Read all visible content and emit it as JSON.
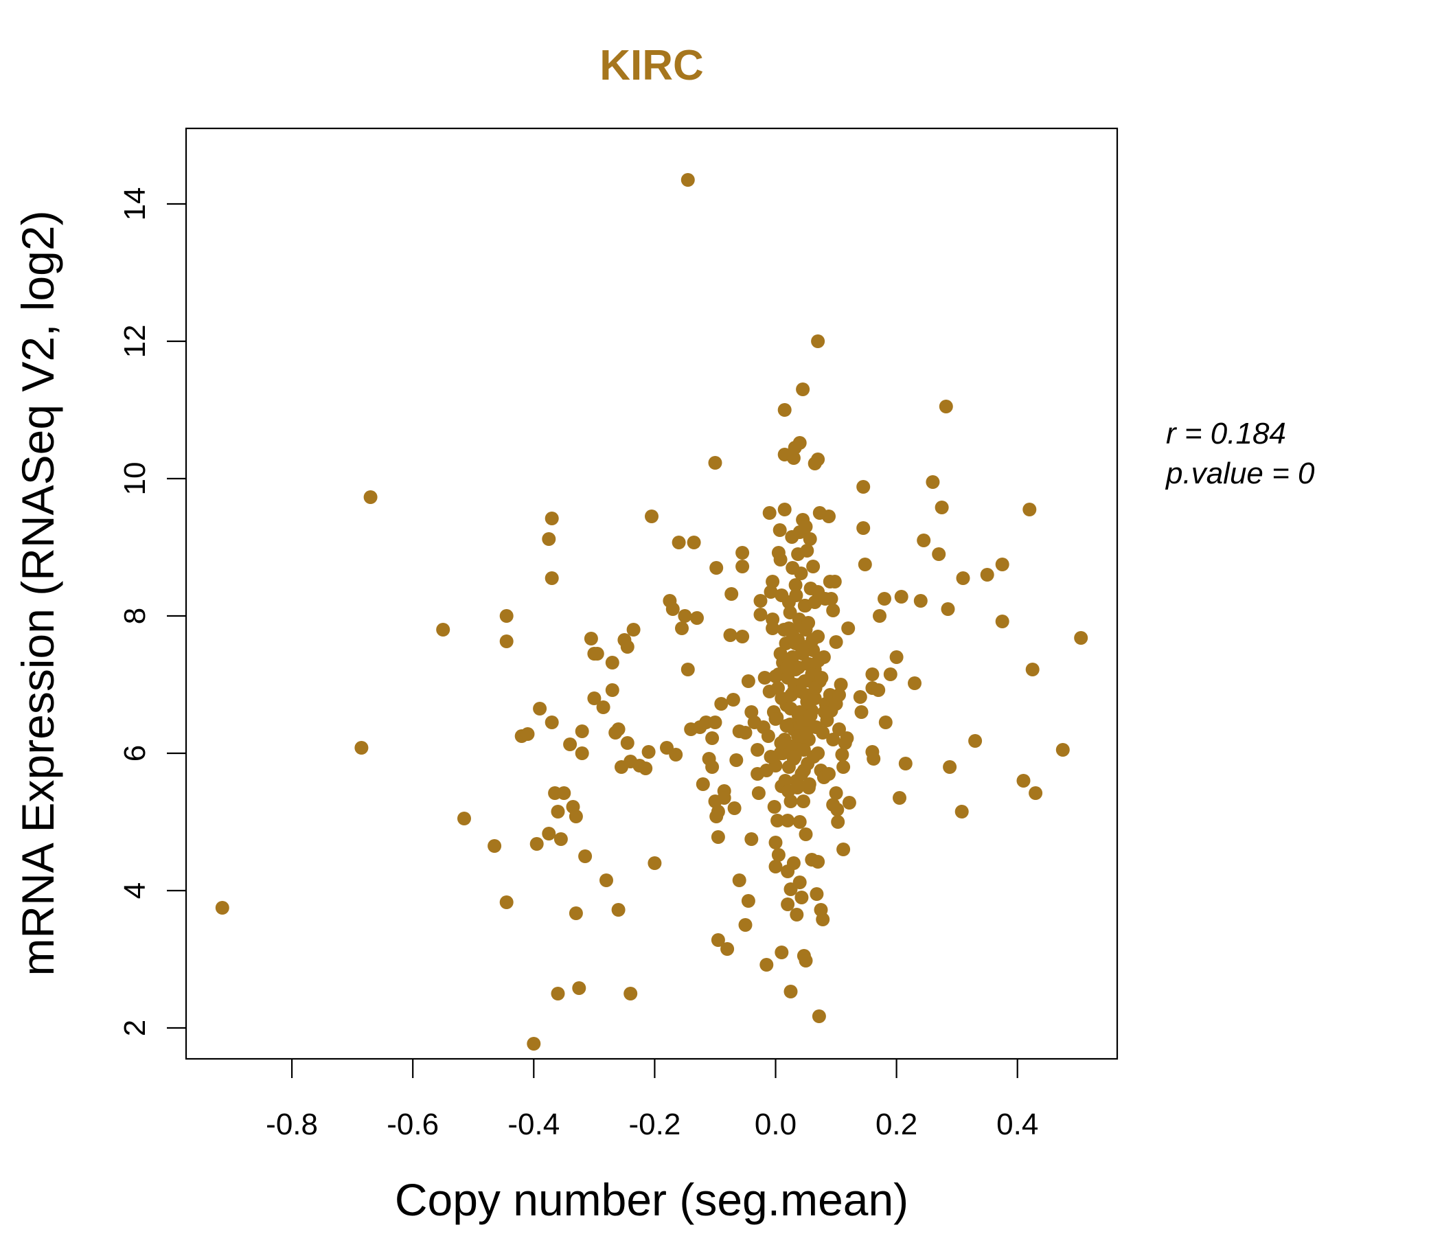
{
  "chart_data": {
    "type": "scatter",
    "title": "KIRC",
    "xlabel": "Copy number (seg.mean)",
    "ylabel": "mRNA Expression (RNASeq V2, log2)",
    "xlim": [
      -0.975,
      0.565
    ],
    "ylim": [
      1.55,
      15.1
    ],
    "x_ticks": [
      -0.8,
      -0.6,
      -0.4,
      -0.2,
      0.0,
      0.2,
      0.4
    ],
    "x_tick_labels": [
      "-0.8",
      "-0.6",
      "-0.4",
      "-0.2",
      "0.0",
      "0.2",
      "0.4"
    ],
    "y_ticks": [
      2,
      4,
      6,
      8,
      10,
      12,
      14
    ],
    "y_tick_labels": [
      "2",
      "4",
      "6",
      "8",
      "10",
      "12",
      "14"
    ],
    "grid": false,
    "point_color": "#A6761D",
    "title_color": "#A6761D",
    "stats": {
      "r_label": "r = 0.184",
      "p_label": "p.value = 0"
    },
    "points": [
      [
        -0.915,
        3.75
      ],
      [
        -0.685,
        6.08
      ],
      [
        -0.67,
        9.73
      ],
      [
        -0.55,
        7.8
      ],
      [
        -0.515,
        5.05
      ],
      [
        -0.465,
        4.65
      ],
      [
        -0.445,
        8.0
      ],
      [
        -0.445,
        7.63
      ],
      [
        -0.445,
        3.83
      ],
      [
        -0.42,
        6.25
      ],
      [
        -0.41,
        6.28
      ],
      [
        -0.4,
        1.77
      ],
      [
        -0.395,
        4.68
      ],
      [
        -0.39,
        6.65
      ],
      [
        -0.375,
        9.12
      ],
      [
        -0.37,
        8.55
      ],
      [
        -0.37,
        9.42
      ],
      [
        -0.37,
        6.45
      ],
      [
        -0.375,
        4.83
      ],
      [
        -0.365,
        5.42
      ],
      [
        -0.36,
        5.15
      ],
      [
        -0.36,
        2.5
      ],
      [
        -0.355,
        4.75
      ],
      [
        -0.35,
        5.42
      ],
      [
        -0.34,
        6.13
      ],
      [
        -0.335,
        5.22
      ],
      [
        -0.33,
        5.08
      ],
      [
        -0.33,
        3.67
      ],
      [
        -0.325,
        2.58
      ],
      [
        -0.32,
        6.32
      ],
      [
        -0.32,
        6.0
      ],
      [
        -0.315,
        4.5
      ],
      [
        -0.305,
        7.67
      ],
      [
        -0.3,
        7.45
      ],
      [
        -0.3,
        6.8
      ],
      [
        -0.295,
        7.45
      ],
      [
        -0.285,
        6.67
      ],
      [
        -0.28,
        4.15
      ],
      [
        -0.27,
        7.32
      ],
      [
        -0.27,
        6.92
      ],
      [
        -0.265,
        6.3
      ],
      [
        -0.26,
        6.35
      ],
      [
        -0.255,
        5.8
      ],
      [
        -0.25,
        7.65
      ],
      [
        -0.245,
        7.55
      ],
      [
        -0.245,
        6.15
      ],
      [
        -0.24,
        5.88
      ],
      [
        -0.24,
        2.5
      ],
      [
        -0.26,
        3.72
      ],
      [
        -0.235,
        7.8
      ],
      [
        -0.225,
        5.82
      ],
      [
        -0.215,
        5.78
      ],
      [
        -0.21,
        6.02
      ],
      [
        -0.205,
        9.45
      ],
      [
        -0.2,
        4.4
      ],
      [
        -0.18,
        6.08
      ],
      [
        -0.175,
        8.22
      ],
      [
        -0.17,
        8.1
      ],
      [
        -0.165,
        5.98
      ],
      [
        -0.16,
        9.07
      ],
      [
        -0.155,
        7.82
      ],
      [
        -0.15,
        8.0
      ],
      [
        -0.145,
        7.22
      ],
      [
        -0.14,
        6.35
      ],
      [
        -0.135,
        9.07
      ],
      [
        -0.13,
        7.97
      ],
      [
        -0.125,
        6.38
      ],
      [
        -0.12,
        5.55
      ],
      [
        -0.115,
        6.45
      ],
      [
        -0.11,
        5.92
      ],
      [
        -0.105,
        5.8
      ],
      [
        -0.105,
        6.22
      ],
      [
        -0.1,
        6.45
      ],
      [
        -0.1,
        5.3
      ],
      [
        -0.098,
        5.08
      ],
      [
        -0.095,
        5.15
      ],
      [
        -0.095,
        4.78
      ],
      [
        -0.095,
        3.28
      ],
      [
        -0.1,
        10.23
      ],
      [
        -0.098,
        8.7
      ],
      [
        -0.09,
        6.72
      ],
      [
        -0.085,
        5.45
      ],
      [
        -0.085,
        5.35
      ],
      [
        -0.08,
        3.15
      ],
      [
        -0.075,
        7.72
      ],
      [
        -0.073,
        8.32
      ],
      [
        -0.07,
        6.78
      ],
      [
        -0.068,
        5.2
      ],
      [
        -0.065,
        5.9
      ],
      [
        -0.06,
        6.32
      ],
      [
        -0.06,
        4.15
      ],
      [
        -0.055,
        8.92
      ],
      [
        -0.055,
        8.72
      ],
      [
        -0.055,
        7.7
      ],
      [
        -0.05,
        6.3
      ],
      [
        -0.05,
        3.5
      ],
      [
        -0.045,
        3.85
      ],
      [
        -0.045,
        7.05
      ],
      [
        -0.04,
        4.75
      ],
      [
        -0.04,
        6.6
      ],
      [
        -0.035,
        6.45
      ],
      [
        -0.03,
        6.05
      ],
      [
        -0.03,
        5.7
      ],
      [
        -0.028,
        5.42
      ],
      [
        -0.025,
        8.22
      ],
      [
        -0.025,
        8.02
      ],
      [
        -0.02,
        6.38
      ],
      [
        -0.015,
        5.75
      ],
      [
        -0.015,
        2.92
      ],
      [
        -0.01,
        9.5
      ],
      [
        -0.008,
        8.35
      ],
      [
        -0.005,
        8.5
      ],
      [
        -0.005,
        7.82
      ],
      [
        -0.003,
        6.6
      ],
      [
        -0.002,
        5.22
      ],
      [
        0.0,
        4.7
      ],
      [
        0.0,
        4.35
      ],
      [
        -0.005,
        7.95
      ],
      [
        0.0,
        5.82
      ],
      [
        0.002,
        6.52
      ],
      [
        0.005,
        7.15
      ],
      [
        0.005,
        8.92
      ],
      [
        0.0,
        7.12
      ],
      [
        0.003,
        5.02
      ],
      [
        0.005,
        4.52
      ],
      [
        0.007,
        9.25
      ],
      [
        0.008,
        8.82
      ],
      [
        0.008,
        6.0
      ],
      [
        0.01,
        8.3
      ],
      [
        0.01,
        5.52
      ],
      [
        0.01,
        3.1
      ],
      [
        0.012,
        7.32
      ],
      [
        0.015,
        10.35
      ],
      [
        0.015,
        11.0
      ],
      [
        0.015,
        9.55
      ],
      [
        0.017,
        7.6
      ],
      [
        0.018,
        6.7
      ],
      [
        0.02,
        5.02
      ],
      [
        0.02,
        4.28
      ],
      [
        0.02,
        3.8
      ],
      [
        0.022,
        8.2
      ],
      [
        0.022,
        7.82
      ],
      [
        0.024,
        6.42
      ],
      [
        0.025,
        5.3
      ],
      [
        0.025,
        4.02
      ],
      [
        0.025,
        2.53
      ],
      [
        0.027,
        9.15
      ],
      [
        0.028,
        8.7
      ],
      [
        0.03,
        10.3
      ],
      [
        0.03,
        6.9
      ],
      [
        0.03,
        5.92
      ],
      [
        0.03,
        4.4
      ],
      [
        0.032,
        10.45
      ],
      [
        0.033,
        8.45
      ],
      [
        0.033,
        7.22
      ],
      [
        0.035,
        6.12
      ],
      [
        0.035,
        5.6
      ],
      [
        0.035,
        3.65
      ],
      [
        0.037,
        8.9
      ],
      [
        0.037,
        7.65
      ],
      [
        0.038,
        6.55
      ],
      [
        0.04,
        10.52
      ],
      [
        0.04,
        9.22
      ],
      [
        0.04,
        7.0
      ],
      [
        0.04,
        5.0
      ],
      [
        0.04,
        4.12
      ],
      [
        0.042,
        8.62
      ],
      [
        0.042,
        6.3
      ],
      [
        0.043,
        3.9
      ],
      [
        0.045,
        11.3
      ],
      [
        0.045,
        9.4
      ],
      [
        0.045,
        7.45
      ],
      [
        0.047,
        5.75
      ],
      [
        0.047,
        3.05
      ],
      [
        0.048,
        8.15
      ],
      [
        0.05,
        9.3
      ],
      [
        0.05,
        7.8
      ],
      [
        0.05,
        6.85
      ],
      [
        0.05,
        4.82
      ],
      [
        0.05,
        2.98
      ],
      [
        0.052,
        8.95
      ],
      [
        0.053,
        7.3
      ],
      [
        0.055,
        6.2
      ],
      [
        0.055,
        5.5
      ],
      [
        0.057,
        9.12
      ],
      [
        0.058,
        8.4
      ],
      [
        0.058,
        7.05
      ],
      [
        0.06,
        6.62
      ],
      [
        0.06,
        4.45
      ],
      [
        0.062,
        8.72
      ],
      [
        0.062,
        7.5
      ],
      [
        0.063,
        5.95
      ],
      [
        0.065,
        10.22
      ],
      [
        0.065,
        8.2
      ],
      [
        0.065,
        7.22
      ],
      [
        0.067,
        6.38
      ],
      [
        0.068,
        3.95
      ],
      [
        0.07,
        12.0
      ],
      [
        0.07,
        10.28
      ],
      [
        0.07,
        8.35
      ],
      [
        0.07,
        7.7
      ],
      [
        0.07,
        6.0
      ],
      [
        0.07,
        4.42
      ],
      [
        0.072,
        2.17
      ],
      [
        0.073,
        9.5
      ],
      [
        0.073,
        7.05
      ],
      [
        0.075,
        5.75
      ],
      [
        0.075,
        3.72
      ],
      [
        0.078,
        6.3
      ],
      [
        0.078,
        3.58
      ],
      [
        0.08,
        7.4
      ],
      [
        0.08,
        5.65
      ],
      [
        0.082,
        8.25
      ],
      [
        0.083,
        6.72
      ],
      [
        0.085,
        6.48
      ],
      [
        0.088,
        9.45
      ],
      [
        0.088,
        5.7
      ],
      [
        0.09,
        8.5
      ],
      [
        0.09,
        6.85
      ],
      [
        0.092,
        8.25
      ],
      [
        0.092,
        6.62
      ],
      [
        0.095,
        8.08
      ],
      [
        0.095,
        6.2
      ],
      [
        0.095,
        5.25
      ],
      [
        0.098,
        8.5
      ],
      [
        0.1,
        7.62
      ],
      [
        0.1,
        6.72
      ],
      [
        0.1,
        5.42
      ],
      [
        0.102,
        5.18
      ],
      [
        0.103,
        5.0
      ],
      [
        0.105,
        6.85
      ],
      [
        0.105,
        6.35
      ],
      [
        0.108,
        7.0
      ],
      [
        0.11,
        5.98
      ],
      [
        0.112,
        5.8
      ],
      [
        0.112,
        4.6
      ],
      [
        0.115,
        6.15
      ],
      [
        0.118,
        6.22
      ],
      [
        0.12,
        7.82
      ],
      [
        0.122,
        5.28
      ],
      [
        0.14,
        6.82
      ],
      [
        0.142,
        6.6
      ],
      [
        0.145,
        9.88
      ],
      [
        0.145,
        9.28
      ],
      [
        0.148,
        8.75
      ],
      [
        0.16,
        7.15
      ],
      [
        0.16,
        6.95
      ],
      [
        0.16,
        6.02
      ],
      [
        0.162,
        5.92
      ],
      [
        0.17,
        6.92
      ],
      [
        0.172,
        8.0
      ],
      [
        0.18,
        8.25
      ],
      [
        0.182,
        6.45
      ],
      [
        0.19,
        7.15
      ],
      [
        0.2,
        7.4
      ],
      [
        0.205,
        5.35
      ],
      [
        0.208,
        8.28
      ],
      [
        0.215,
        5.85
      ],
      [
        0.23,
        7.02
      ],
      [
        0.24,
        8.22
      ],
      [
        0.245,
        9.1
      ],
      [
        0.26,
        9.95
      ],
      [
        0.27,
        8.9
      ],
      [
        0.275,
        9.58
      ],
      [
        0.282,
        11.05
      ],
      [
        0.285,
        8.1
      ],
      [
        0.288,
        5.8
      ],
      [
        0.308,
        5.15
      ],
      [
        0.31,
        8.55
      ],
      [
        0.33,
        6.18
      ],
      [
        0.35,
        8.6
      ],
      [
        0.375,
        8.75
      ],
      [
        0.375,
        7.92
      ],
      [
        0.41,
        5.6
      ],
      [
        0.42,
        9.55
      ],
      [
        0.425,
        7.22
      ],
      [
        0.43,
        5.42
      ],
      [
        0.475,
        6.05
      ],
      [
        0.505,
        7.68
      ],
      [
        -0.145,
        14.35
      ],
      [
        0.0,
        6.5
      ],
      [
        0.01,
        6.8
      ],
      [
        0.015,
        6.2
      ],
      [
        0.02,
        7.1
      ],
      [
        0.025,
        6.65
      ],
      [
        0.028,
        7.4
      ],
      [
        0.03,
        6.35
      ],
      [
        0.033,
        7.6
      ],
      [
        0.035,
        6.95
      ],
      [
        0.038,
        7.25
      ],
      [
        0.04,
        6.6
      ],
      [
        0.042,
        7.85
      ],
      [
        0.045,
        6.45
      ],
      [
        0.048,
        7.05
      ],
      [
        0.05,
        7.55
      ],
      [
        0.052,
        6.75
      ],
      [
        0.055,
        7.3
      ],
      [
        0.058,
        6.55
      ],
      [
        0.06,
        7.15
      ],
      [
        0.065,
        6.8
      ],
      [
        0.012,
        6.0
      ],
      [
        0.018,
        6.4
      ],
      [
        0.022,
        5.8
      ],
      [
        0.027,
        6.1
      ],
      [
        0.032,
        5.95
      ],
      [
        0.037,
        6.25
      ],
      [
        0.043,
        5.7
      ],
      [
        0.047,
        6.05
      ],
      [
        0.053,
        5.85
      ],
      [
        0.057,
        6.4
      ],
      [
        0.008,
        7.45
      ],
      [
        0.014,
        7.8
      ],
      [
        0.019,
        7.25
      ],
      [
        0.024,
        8.05
      ],
      [
        0.029,
        7.7
      ],
      [
        0.034,
        8.3
      ],
      [
        0.039,
        7.95
      ],
      [
        0.044,
        7.5
      ],
      [
        0.049,
        8.15
      ],
      [
        0.054,
        7.9
      ],
      [
        0.004,
        6.95
      ],
      [
        0.009,
        6.15
      ],
      [
        0.016,
        5.6
      ],
      [
        0.021,
        5.45
      ],
      [
        0.026,
        6.85
      ],
      [
        0.031,
        7.0
      ],
      [
        0.036,
        5.5
      ],
      [
        0.041,
        6.9
      ],
      [
        0.046,
        5.3
      ],
      [
        0.051,
        6.3
      ],
      [
        0.056,
        5.55
      ],
      [
        0.061,
        7.65
      ],
      [
        0.066,
        6.95
      ],
      [
        0.071,
        7.35
      ],
      [
        0.076,
        7.1
      ],
      [
        0.081,
        6.6
      ],
      [
        -0.01,
        6.9
      ],
      [
        -0.012,
        6.25
      ],
      [
        -0.018,
        7.1
      ],
      [
        -0.008,
        5.95
      ]
    ]
  }
}
